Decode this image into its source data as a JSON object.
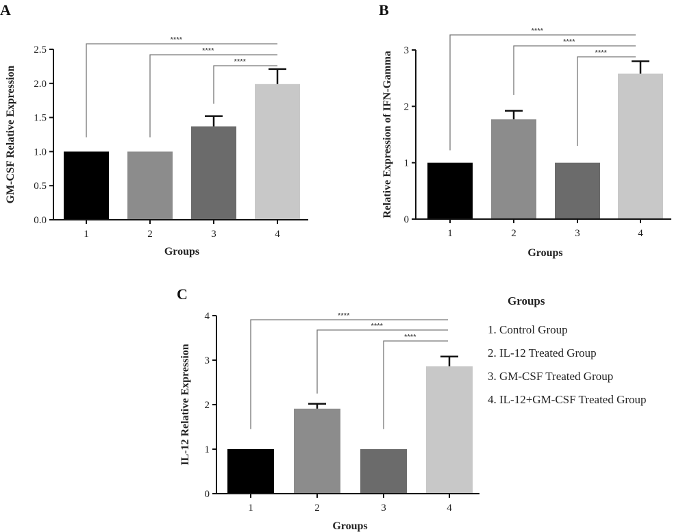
{
  "chart_data": [
    {
      "panel": "A",
      "type": "bar",
      "title": "",
      "xlabel": "Groups",
      "ylabel": "GM-CSF Relative Expression",
      "categories": [
        "1",
        "2",
        "3",
        "4"
      ],
      "values": [
        1.0,
        1.0,
        1.37,
        1.99
      ],
      "error_upper": [
        1.0,
        1.0,
        1.52,
        2.21
      ],
      "colors": [
        "#000000",
        "#8c8c8c",
        "#6b6b6b",
        "#c8c8c8"
      ],
      "ylim": [
        0,
        2.5
      ],
      "yticks": [
        "0.0",
        "0.5",
        "1.0",
        "1.5",
        "2.0",
        "2.5"
      ],
      "ytick_values": [
        0,
        0.5,
        1.0,
        1.5,
        2.0,
        2.5
      ],
      "significance": [
        {
          "from": "1",
          "to": "4",
          "label": "****"
        },
        {
          "from": "2",
          "to": "4",
          "label": "****"
        },
        {
          "from": "3",
          "to": "4",
          "label": "****"
        }
      ]
    },
    {
      "panel": "B",
      "type": "bar",
      "title": "",
      "xlabel": "Groups",
      "ylabel": "Relative Expression of IFN-Gamma",
      "categories": [
        "1",
        "2",
        "3",
        "4"
      ],
      "values": [
        1.0,
        1.77,
        1.0,
        2.58
      ],
      "error_upper": [
        1.0,
        1.92,
        1.0,
        2.8
      ],
      "colors": [
        "#000000",
        "#8c8c8c",
        "#6b6b6b",
        "#c8c8c8"
      ],
      "ylim": [
        0,
        3
      ],
      "yticks": [
        "0",
        "1",
        "2",
        "3"
      ],
      "ytick_values": [
        0,
        1,
        2,
        3
      ],
      "significance": [
        {
          "from": "1",
          "to": "4",
          "label": "****"
        },
        {
          "from": "2",
          "to": "4",
          "label": "****"
        },
        {
          "from": "3",
          "to": "4",
          "label": "****"
        }
      ]
    },
    {
      "panel": "C",
      "type": "bar",
      "title": "",
      "xlabel": "Groups",
      "ylabel": "IL-12 Relative Expression",
      "categories": [
        "1",
        "2",
        "3",
        "4"
      ],
      "values": [
        1.0,
        1.91,
        1.0,
        2.86
      ],
      "error_upper": [
        1.0,
        2.02,
        1.0,
        3.08
      ],
      "colors": [
        "#000000",
        "#8c8c8c",
        "#6b6b6b",
        "#c8c8c8"
      ],
      "ylim": [
        0,
        4
      ],
      "yticks": [
        "0",
        "1",
        "2",
        "3",
        "4"
      ],
      "ytick_values": [
        0,
        1,
        2,
        3,
        4
      ],
      "significance": [
        {
          "from": "1",
          "to": "4",
          "label": "****"
        },
        {
          "from": "2",
          "to": "4",
          "label": "****"
        },
        {
          "from": "3",
          "to": "4",
          "label": "****"
        }
      ]
    }
  ],
  "legend": {
    "title": "Groups",
    "items": [
      "1.  Control Group",
      "2.  IL-12 Treated Group",
      "3.  GM-CSF Treated Group",
      "4.  IL-12+GM-CSF Treated  Group"
    ]
  }
}
